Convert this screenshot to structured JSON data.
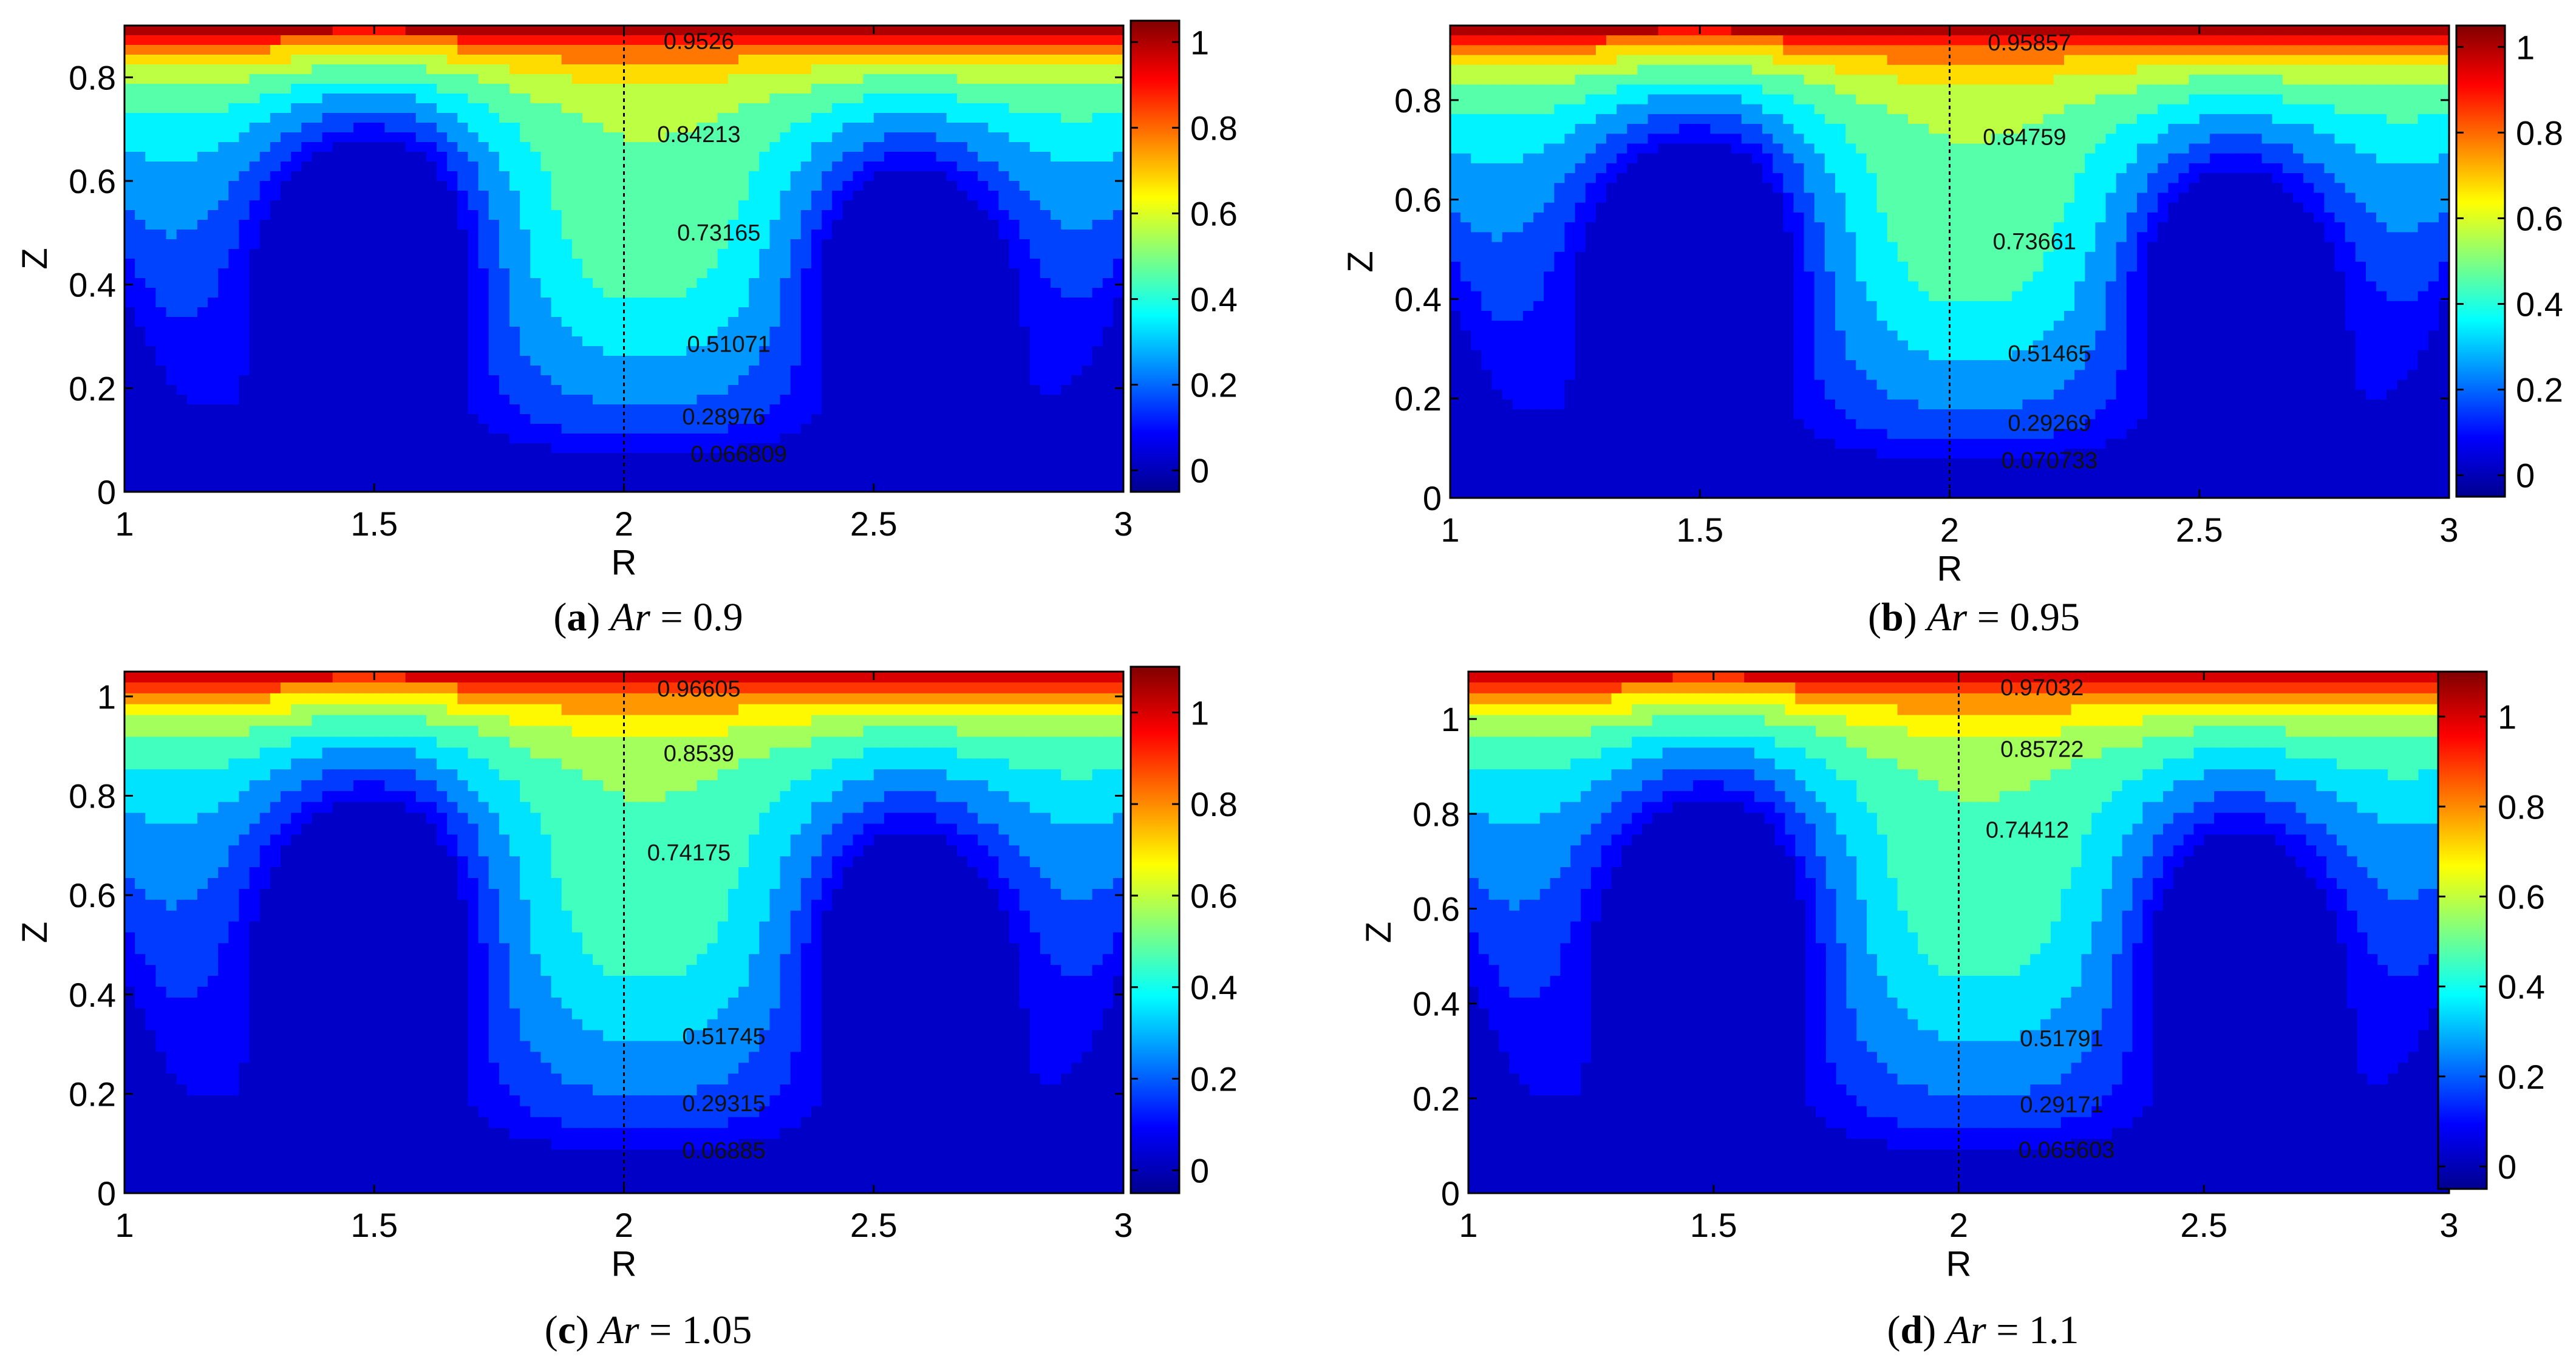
{
  "chart_data": [
    {
      "id": "a",
      "type": "contour",
      "caption_letter": "a",
      "caption_symbol": "Ar",
      "caption_value": "0.9",
      "xlabel": "R",
      "ylabel": "Z",
      "xlim": [
        1,
        3
      ],
      "ylim": [
        0,
        0.9
      ],
      "xticks": [
        "1",
        "1.5",
        "2",
        "2.5",
        "3"
      ],
      "xtick_values": [
        1,
        1.5,
        2,
        2.5,
        3
      ],
      "yticks": [
        "0",
        "0.2",
        "0.4",
        "0.6",
        "0.8"
      ],
      "ytick_values": [
        0,
        0.2,
        0.4,
        0.6,
        0.8
      ],
      "colorbar_ticks": [
        "0",
        "0.2",
        "0.4",
        "0.6",
        "0.8",
        "1"
      ],
      "colorbar_values": [
        0,
        0.2,
        0.4,
        0.6,
        0.8,
        1
      ],
      "colorbar_range": [
        -0.05,
        1.05
      ],
      "divider_r": 2,
      "contour_labels": [
        "0.9526",
        "0.84213",
        "0.73165",
        "0.51071",
        "0.28976",
        "0.066809"
      ],
      "contour_label_positions": [
        {
          "r": 2.15,
          "z": 0.855
        },
        {
          "r": 2.15,
          "z": 0.675
        },
        {
          "r": 2.19,
          "z": 0.485
        },
        {
          "r": 2.21,
          "z": 0.27
        },
        {
          "r": 2.2,
          "z": 0.13
        },
        {
          "r": 2.23,
          "z": 0.058
        }
      ]
    },
    {
      "id": "b",
      "type": "contour",
      "caption_letter": "b",
      "caption_symbol": "Ar",
      "caption_value": "0.95",
      "xlabel": "R",
      "ylabel": "Z",
      "xlim": [
        1,
        3
      ],
      "ylim": [
        0,
        0.95
      ],
      "xticks": [
        "1",
        "1.5",
        "2",
        "2.5",
        "3"
      ],
      "xtick_values": [
        1,
        1.5,
        2,
        2.5,
        3
      ],
      "yticks": [
        "0",
        "0.2",
        "0.4",
        "0.6",
        "0.8"
      ],
      "ytick_values": [
        0,
        0.2,
        0.4,
        0.6,
        0.8
      ],
      "colorbar_ticks": [
        "0",
        "0.2",
        "0.4",
        "0.6",
        "0.8",
        "1"
      ],
      "colorbar_values": [
        0,
        0.2,
        0.4,
        0.6,
        0.8,
        1
      ],
      "colorbar_range": [
        -0.05,
        1.05
      ],
      "divider_r": 2,
      "contour_labels": [
        "0.95857",
        "0.84759",
        "0.73661",
        "0.51465",
        "0.29269",
        "0.070733"
      ],
      "contour_label_positions": [
        {
          "r": 2.16,
          "z": 0.9
        },
        {
          "r": 2.15,
          "z": 0.71
        },
        {
          "r": 2.17,
          "z": 0.5
        },
        {
          "r": 2.2,
          "z": 0.275
        },
        {
          "r": 2.2,
          "z": 0.135
        },
        {
          "r": 2.2,
          "z": 0.06
        }
      ]
    },
    {
      "id": "c",
      "type": "contour",
      "caption_letter": "c",
      "caption_symbol": "Ar",
      "caption_value": "1.05",
      "xlabel": "R",
      "ylabel": "Z",
      "xlim": [
        1,
        3
      ],
      "ylim": [
        0,
        1.05
      ],
      "xticks": [
        "1",
        "1.5",
        "2",
        "2.5",
        "3"
      ],
      "xtick_values": [
        1,
        1.5,
        2,
        2.5,
        3
      ],
      "yticks": [
        "0",
        "0.2",
        "0.4",
        "0.6",
        "0.8",
        "1"
      ],
      "ytick_values": [
        0,
        0.2,
        0.4,
        0.6,
        0.8,
        1
      ],
      "colorbar_ticks": [
        "0",
        "0.2",
        "0.4",
        "0.6",
        "0.8",
        "1"
      ],
      "colorbar_values": [
        0,
        0.2,
        0.4,
        0.6,
        0.8,
        1
      ],
      "colorbar_range": [
        -0.05,
        1.1
      ],
      "divider_r": 2,
      "contour_labels": [
        "0.96605",
        "0.8539",
        "0.74175",
        "0.51745",
        "0.29315",
        "0.06885"
      ],
      "contour_label_positions": [
        {
          "r": 2.15,
          "z": 1.0
        },
        {
          "r": 2.15,
          "z": 0.87
        },
        {
          "r": 2.13,
          "z": 0.67
        },
        {
          "r": 2.2,
          "z": 0.3
        },
        {
          "r": 2.2,
          "z": 0.165
        },
        {
          "r": 2.2,
          "z": 0.07
        }
      ]
    },
    {
      "id": "d",
      "type": "contour",
      "caption_letter": "d",
      "caption_symbol": "Ar",
      "caption_value": "1.1",
      "xlabel": "R",
      "ylabel": "Z",
      "xlim": [
        1,
        3
      ],
      "ylim": [
        0,
        1.1
      ],
      "xticks": [
        "1",
        "1.5",
        "2",
        "2.5",
        "3"
      ],
      "xtick_values": [
        1,
        1.5,
        2,
        2.5,
        3
      ],
      "yticks": [
        "0",
        "0.2",
        "0.4",
        "0.6",
        "0.8",
        "1"
      ],
      "ytick_values": [
        0,
        0.2,
        0.4,
        0.6,
        0.8,
        1
      ],
      "colorbar_ticks": [
        "0",
        "0.2",
        "0.4",
        "0.6",
        "0.8",
        "1"
      ],
      "colorbar_values": [
        0,
        0.2,
        0.4,
        0.6,
        0.8,
        1
      ],
      "colorbar_range": [
        -0.05,
        1.1
      ],
      "divider_r": 2,
      "contour_labels": [
        "0.97032",
        "0.85722",
        "0.74412",
        "0.51791",
        "0.29171",
        "0.065603"
      ],
      "contour_label_positions": [
        {
          "r": 2.17,
          "z": 1.05
        },
        {
          "r": 2.17,
          "z": 0.92
        },
        {
          "r": 2.14,
          "z": 0.75
        },
        {
          "r": 2.21,
          "z": 0.31
        },
        {
          "r": 2.21,
          "z": 0.17
        },
        {
          "r": 2.22,
          "z": 0.075
        }
      ]
    }
  ]
}
